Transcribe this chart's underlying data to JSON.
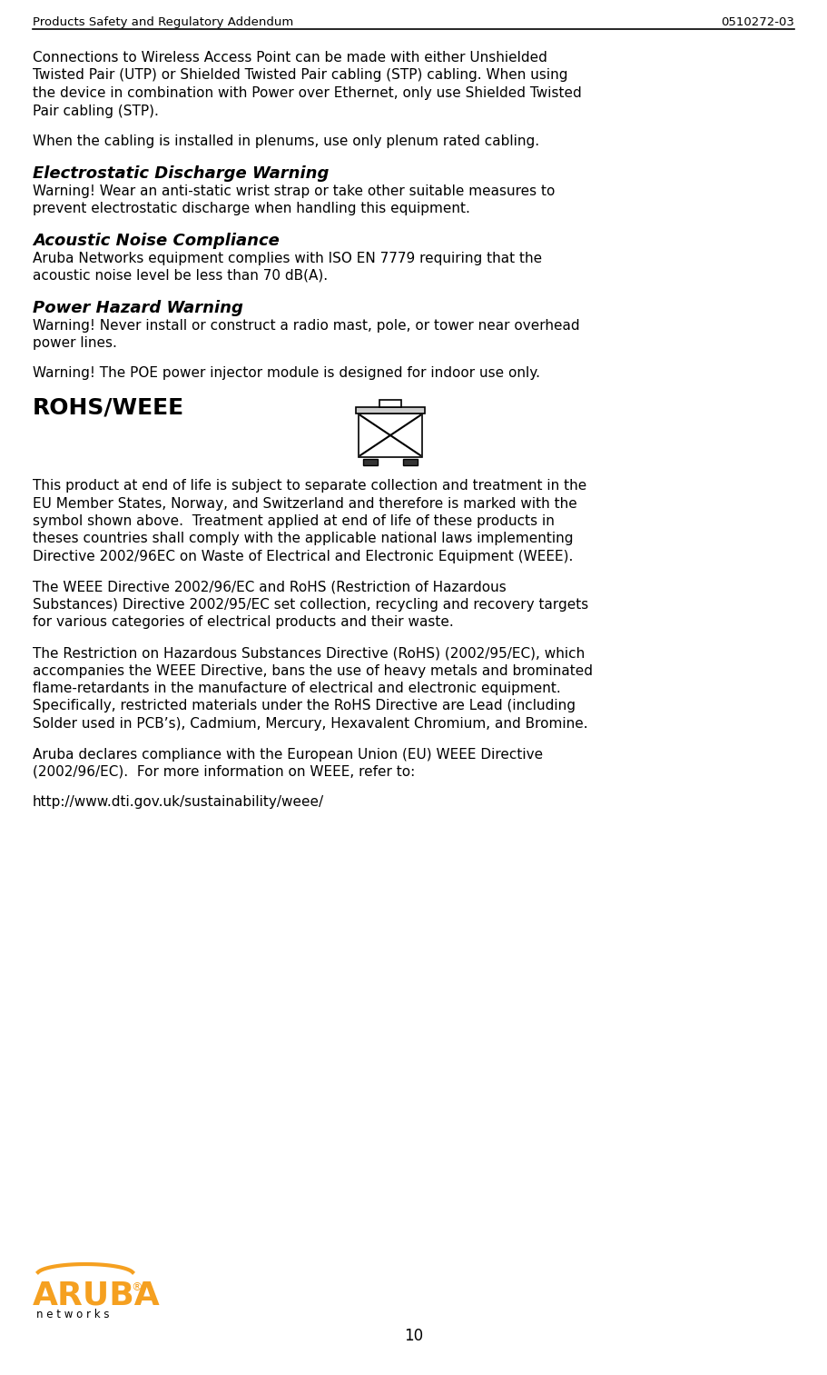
{
  "header_left": "Products Safety and Regulatory Addendum",
  "header_right": "0510272-03",
  "page_number": "10",
  "bg_color": "#ffffff",
  "text_color": "#000000",
  "aruba_orange": "#F5A020"
}
